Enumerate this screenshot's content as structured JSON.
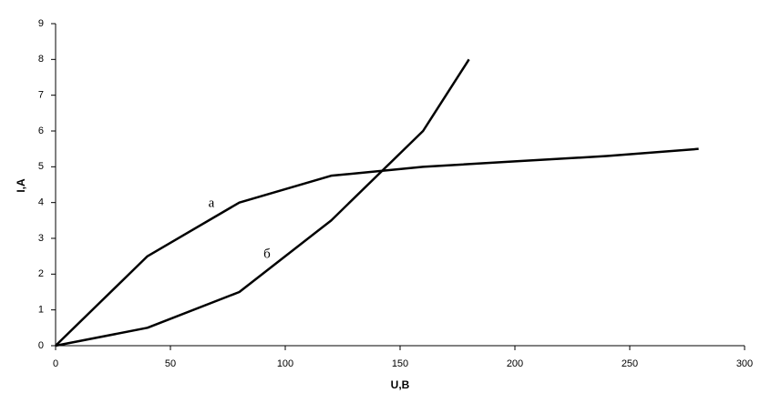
{
  "chart_data": {
    "type": "line",
    "x_label": "U,B",
    "y_label": "I,A",
    "x": [
      0,
      40,
      80,
      120,
      160,
      200,
      240,
      280
    ],
    "series": [
      {
        "name": "а",
        "color": "#000000",
        "x": [
          0,
          40,
          80,
          120,
          160,
          200,
          240,
          280
        ],
        "values": [
          0,
          2.5,
          4,
          4.75,
          5,
          5.15,
          5.3,
          5.5
        ]
      },
      {
        "name": "б",
        "color": "#000000",
        "x": [
          0,
          40,
          80,
          120,
          160,
          180
        ],
        "values": [
          0,
          0.5,
          1.5,
          3.5,
          6,
          8
        ]
      }
    ],
    "xlim": [
      0,
      300
    ],
    "xticks": [
      0,
      50,
      100,
      150,
      200,
      250,
      300
    ],
    "ylim": [
      0,
      9
    ],
    "yticks": [
      0,
      1,
      2,
      3,
      4,
      5,
      6,
      7,
      8,
      9
    ],
    "grid": false
  }
}
